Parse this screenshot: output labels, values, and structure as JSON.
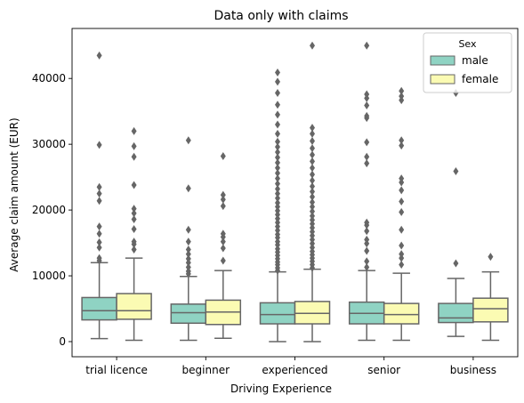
{
  "chart_data": {
    "type": "boxplot",
    "title": "Data only with claims",
    "xlabel": "Driving Experience",
    "ylabel": "Average claim amount (EUR)",
    "ylim": [
      -2300,
      47600
    ],
    "yticks": [
      0,
      10000,
      20000,
      30000,
      40000
    ],
    "grid": false,
    "categories": [
      "trial licence",
      "beginner",
      "experienced",
      "senior",
      "business"
    ],
    "legend": {
      "title": "Sex",
      "placement": "top-right",
      "entries": [
        {
          "label": "male",
          "color": "#8fd3c3"
        },
        {
          "label": "female",
          "color": "#fbfbb3"
        }
      ]
    },
    "series": [
      {
        "name": "male",
        "color": "#8fd3c3",
        "boxes": [
          {
            "whislo": 450,
            "q1": 3300,
            "median": 4700,
            "q3": 6700,
            "whishi": 12000,
            "fliers": [
              12300,
              12700,
              14300,
              15100,
              16400,
              17500,
              21400,
              22500,
              23500,
              29900,
              43500
            ]
          },
          {
            "whislo": 200,
            "q1": 2800,
            "median": 4400,
            "q3": 5700,
            "whishi": 9900,
            "fliers": [
              10300,
              10700,
              11300,
              12000,
              12600,
              13300,
              14000,
              15200,
              17000,
              23300,
              30600
            ]
          },
          {
            "whislo": 0,
            "q1": 2700,
            "median": 4100,
            "q3": 5900,
            "whishi": 10600,
            "fliers": [
              10800,
              11200,
              11700,
              12100,
              12600,
              13100,
              13600,
              14100,
              14700,
              15200,
              15800,
              16300,
              16900,
              17500,
              18100,
              18700,
              19300,
              19900,
              20500,
              21100,
              21800,
              22500,
              23200,
              24000,
              24800,
              25600,
              26400,
              27200,
              28000,
              28800,
              29600,
              30400,
              31600,
              33000,
              34500,
              36000,
              37800,
              39500,
              40900
            ]
          },
          {
            "whislo": 200,
            "q1": 2700,
            "median": 4300,
            "q3": 6000,
            "whishi": 10800,
            "fliers": [
              11300,
              12200,
              13800,
              14900,
              15500,
              16800,
              17700,
              18100,
              27100,
              28100,
              30300,
              34000,
              34300,
              35900,
              37000,
              37600,
              45000
            ]
          },
          {
            "whislo": 800,
            "q1": 2900,
            "median": 3600,
            "q3": 5800,
            "whishi": 9600,
            "fliers": [
              11900,
              25900,
              37800
            ]
          }
        ]
      },
      {
        "name": "female",
        "color": "#fbfbb3",
        "boxes": [
          {
            "whislo": 200,
            "q1": 3400,
            "median": 4700,
            "q3": 7300,
            "whishi": 12700,
            "fliers": [
              14000,
              14800,
              15200,
              17100,
              18600,
              19500,
              20200,
              23800,
              28100,
              29700,
              32000
            ]
          },
          {
            "whislo": 500,
            "q1": 2600,
            "median": 4500,
            "q3": 6300,
            "whishi": 10800,
            "fliers": [
              12300,
              14200,
              15200,
              15900,
              16400,
              20600,
              21600,
              22300,
              28200
            ]
          },
          {
            "whislo": 0,
            "q1": 2700,
            "median": 4300,
            "q3": 6100,
            "whishi": 11000,
            "fliers": [
              11200,
              11700,
              12200,
              12700,
              13200,
              13700,
              14300,
              14900,
              15500,
              16100,
              16700,
              17300,
              17900,
              18500,
              19100,
              19800,
              20500,
              21200,
              22000,
              22800,
              23600,
              24500,
              25400,
              26400,
              27400,
              28400,
              29400,
              30500,
              31600,
              32500,
              45000
            ]
          },
          {
            "whislo": 200,
            "q1": 2700,
            "median": 4100,
            "q3": 5800,
            "whishi": 10400,
            "fliers": [
              11700,
              12700,
              13300,
              14600,
              17000,
              19700,
              21300,
              23000,
              24200,
              24800,
              29800,
              30600,
              36700,
              37300,
              38100
            ]
          },
          {
            "whislo": 200,
            "q1": 3000,
            "median": 5000,
            "q3": 6600,
            "whishi": 10600,
            "fliers": [
              12900
            ]
          }
        ]
      }
    ]
  }
}
